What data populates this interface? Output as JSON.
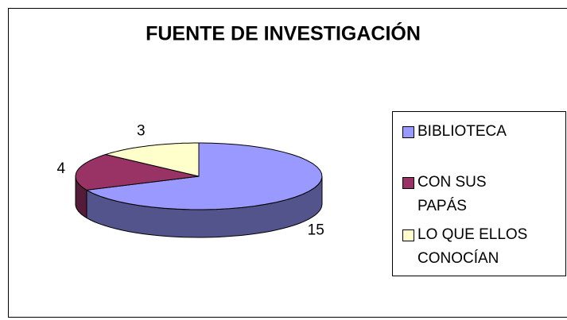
{
  "chart_data": {
    "type": "pie",
    "title": "FUENTE DE INVESTIGACIÓN",
    "categories": [
      "BIBLIOTECA",
      "CON SUS PAPÁS",
      "LO QUE ELLOS CONOCÍAN"
    ],
    "values": [
      15,
      4,
      3
    ],
    "colors": [
      "#9999ff",
      "#993366",
      "#ffffcc"
    ],
    "legend": "right"
  }
}
